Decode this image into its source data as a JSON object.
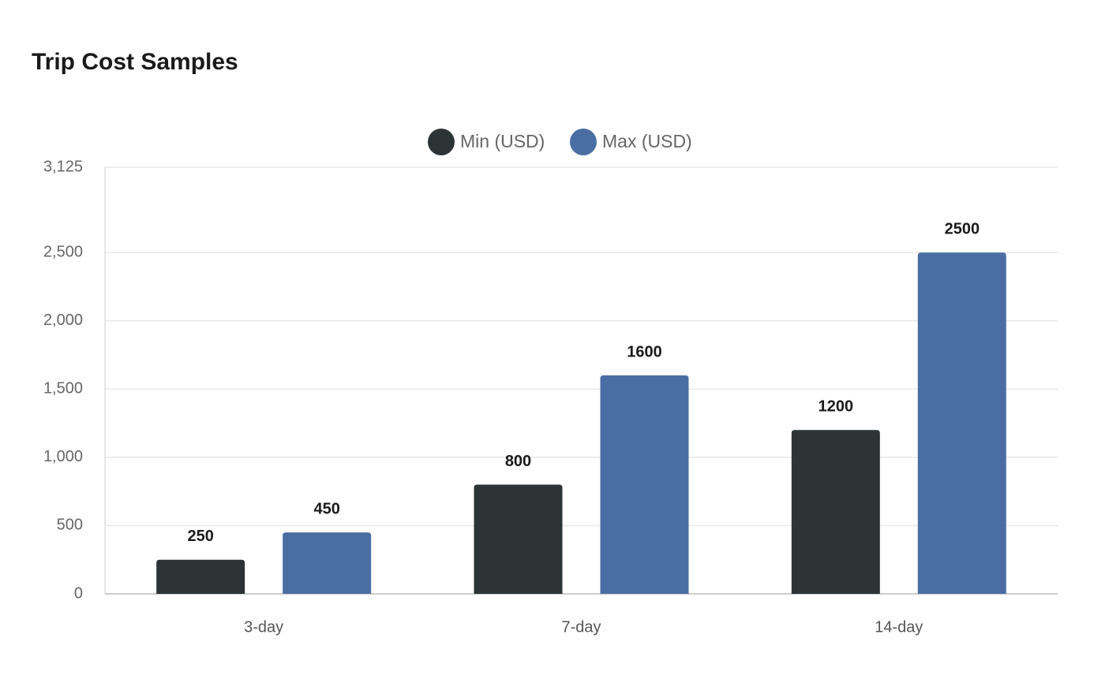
{
  "chart_data": {
    "type": "bar",
    "title": "Trip Cost Samples",
    "categories": [
      "3-day",
      "7-day",
      "14-day"
    ],
    "series": [
      {
        "name": "Min (USD)",
        "color": "#2d3436",
        "values": [
          250,
          800,
          1200
        ]
      },
      {
        "name": "Max (USD)",
        "color": "#4a6da4",
        "values": [
          450,
          1600,
          2500
        ]
      }
    ],
    "ylim": [
      0,
      3125
    ],
    "yticks": [
      0,
      500,
      {
        "value": 1000,
        "label": "1,000"
      },
      {
        "value": 1500,
        "label": "1,500"
      },
      {
        "value": 2000,
        "label": "2,000"
      },
      {
        "value": 2500,
        "label": "2,500"
      },
      {
        "value": 3125,
        "label": "3,125"
      }
    ],
    "grid": true,
    "legend": "top"
  }
}
